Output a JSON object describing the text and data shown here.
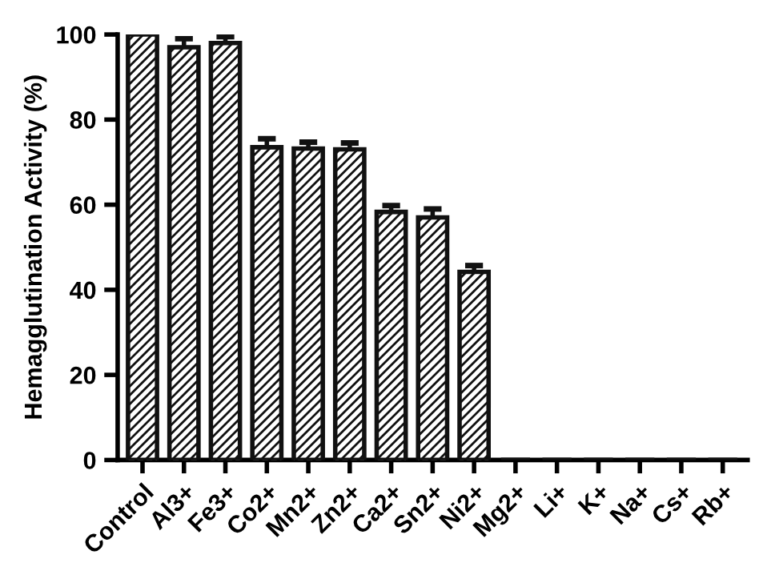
{
  "chart_data": {
    "type": "bar",
    "ylabel": "Hemagglutination Activity (%)",
    "categories": [
      "Control",
      "Al3+",
      "Fe3+",
      "Co2+",
      "Mn2+",
      "Zn2+",
      "Ca2+",
      "Sn2+",
      "Ni2+",
      "Mg2+",
      "Li+",
      "K+",
      "Na+",
      "Cs+",
      "Rb+"
    ],
    "values": [
      100,
      97,
      98,
      73.5,
      73.2,
      73,
      58.3,
      57,
      44.2,
      0,
      0,
      0,
      0,
      0,
      0
    ],
    "errors": [
      null,
      2,
      1.5,
      2,
      1.5,
      1.5,
      1.5,
      2,
      1.5,
      null,
      null,
      null,
      null,
      null,
      null
    ],
    "color": "#111111",
    "ylim": [
      0,
      100
    ],
    "yticks": [
      0,
      20,
      40,
      60,
      80,
      100
    ],
    "grid": false,
    "legend": false
  }
}
